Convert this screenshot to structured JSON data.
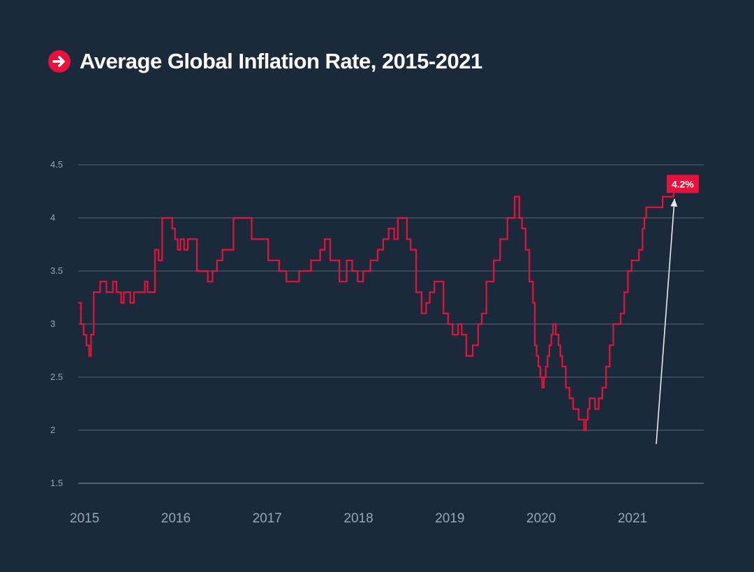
{
  "colors": {
    "background": "#1b2a3a",
    "accent": "#e8113b",
    "grid": "#55677a",
    "text": "#ffffff",
    "muted": "#9aa6b2"
  },
  "title_icon": "arrow-right-circle-icon",
  "chart_data": {
    "type": "line",
    "title": "Average Global Inflation Rate, 2015-2021",
    "xlabel": "",
    "ylabel": "",
    "ylim": [
      1.5,
      4.5
    ],
    "xlim": [
      2015.0,
      2021.85
    ],
    "yticks": [
      1.5,
      2,
      2.5,
      3,
      3.5,
      4,
      4.5
    ],
    "ytick_labels": [
      "1.5",
      "2",
      "2.5",
      "3",
      "3.5",
      "4",
      "4.5"
    ],
    "xticks": [
      2015,
      2016,
      2017,
      2018,
      2019,
      2020,
      2021
    ],
    "xtick_labels": [
      "2015",
      "2016",
      "2017",
      "2018",
      "2019",
      "2020",
      "2021"
    ],
    "grid": true,
    "step": true,
    "series": [
      {
        "name": "Average Global Inflation Rate",
        "x": [
          2015.0,
          2015.03,
          2015.06,
          2015.09,
          2015.12,
          2015.14,
          2015.17,
          2015.2,
          2015.24,
          2015.31,
          2015.38,
          2015.42,
          2015.47,
          2015.5,
          2015.57,
          2015.61,
          2015.66,
          2015.73,
          2015.76,
          2015.84,
          2015.88,
          2015.92,
          2016.03,
          2016.06,
          2016.09,
          2016.12,
          2016.16,
          2016.2,
          2016.25,
          2016.3,
          2016.38,
          2016.42,
          2016.47,
          2016.52,
          2016.55,
          2016.58,
          2016.7,
          2016.8,
          2016.9,
          2017.0,
          2017.08,
          2017.2,
          2017.28,
          2017.42,
          2017.55,
          2017.65,
          2017.7,
          2017.76,
          2017.86,
          2017.94,
          2018.0,
          2018.06,
          2018.12,
          2018.2,
          2018.28,
          2018.34,
          2018.4,
          2018.46,
          2018.5,
          2018.56,
          2018.6,
          2018.64,
          2018.7,
          2018.76,
          2018.81,
          2018.85,
          2018.9,
          2019.0,
          2019.05,
          2019.1,
          2019.16,
          2019.2,
          2019.25,
          2019.32,
          2019.38,
          2019.42,
          2019.47,
          2019.55,
          2019.62,
          2019.7,
          2019.78,
          2019.83,
          2019.86,
          2019.9,
          2019.94,
          2019.98,
          2020.0,
          2020.02,
          2020.04,
          2020.06,
          2020.08,
          2020.1,
          2020.12,
          2020.14,
          2020.16,
          2020.18,
          2020.2,
          2020.23,
          2020.26,
          2020.28,
          2020.3,
          2020.34,
          2020.38,
          2020.42,
          2020.48,
          2020.54,
          2020.56,
          2020.58,
          2020.6,
          2020.66,
          2020.7,
          2020.74,
          2020.78,
          2020.82,
          2020.86,
          2020.88,
          2020.94,
          2020.98,
          2021.02,
          2021.06,
          2021.1,
          2021.14,
          2021.18,
          2021.2,
          2021.22,
          2021.24,
          2021.26,
          2021.28,
          2021.3,
          2021.32,
          2021.34,
          2021.36,
          2021.38,
          2021.4,
          2021.44,
          2021.48,
          2021.52,
          2021.56
        ],
        "values": [
          3.2,
          3.0,
          2.9,
          2.8,
          2.7,
          2.9,
          3.3,
          3.3,
          3.4,
          3.3,
          3.4,
          3.3,
          3.2,
          3.3,
          3.2,
          3.3,
          3.3,
          3.4,
          3.3,
          3.7,
          3.6,
          4.0,
          3.9,
          3.8,
          3.7,
          3.8,
          3.7,
          3.8,
          3.8,
          3.5,
          3.5,
          3.4,
          3.5,
          3.6,
          3.6,
          3.7,
          4.0,
          4.0,
          3.8,
          3.8,
          3.6,
          3.5,
          3.4,
          3.5,
          3.6,
          3.7,
          3.8,
          3.6,
          3.4,
          3.6,
          3.5,
          3.4,
          3.5,
          3.6,
          3.7,
          3.8,
          3.9,
          3.8,
          4.0,
          4.0,
          3.8,
          3.7,
          3.3,
          3.1,
          3.2,
          3.3,
          3.4,
          3.1,
          3.0,
          2.9,
          3.0,
          2.9,
          2.7,
          2.8,
          3.0,
          3.1,
          3.4,
          3.6,
          3.8,
          4.0,
          4.2,
          4.0,
          3.9,
          3.7,
          3.4,
          3.2,
          2.8,
          2.7,
          2.6,
          2.5,
          2.4,
          2.5,
          2.6,
          2.7,
          2.8,
          2.9,
          3.0,
          2.9,
          2.8,
          2.7,
          2.6,
          2.4,
          2.3,
          2.2,
          2.1,
          2.0,
          2.1,
          2.2,
          2.3,
          2.2,
          2.3,
          2.4,
          2.6,
          2.8,
          3.0,
          3.0,
          3.1,
          3.3,
          3.5,
          3.6,
          3.6,
          3.7,
          3.9,
          4.0,
          4.1,
          4.1,
          4.1,
          4.1,
          4.1,
          4.1,
          4.1,
          4.1,
          4.1,
          4.2,
          4.2,
          4.2,
          4.3,
          4.3
        ]
      }
    ],
    "annotations": [
      {
        "text": "4.2%",
        "x": 2021.62,
        "y": 4.32,
        "arrow_from": [
          2021.33,
          1.87
        ],
        "arrow_to": [
          2021.53,
          4.18
        ]
      }
    ]
  }
}
